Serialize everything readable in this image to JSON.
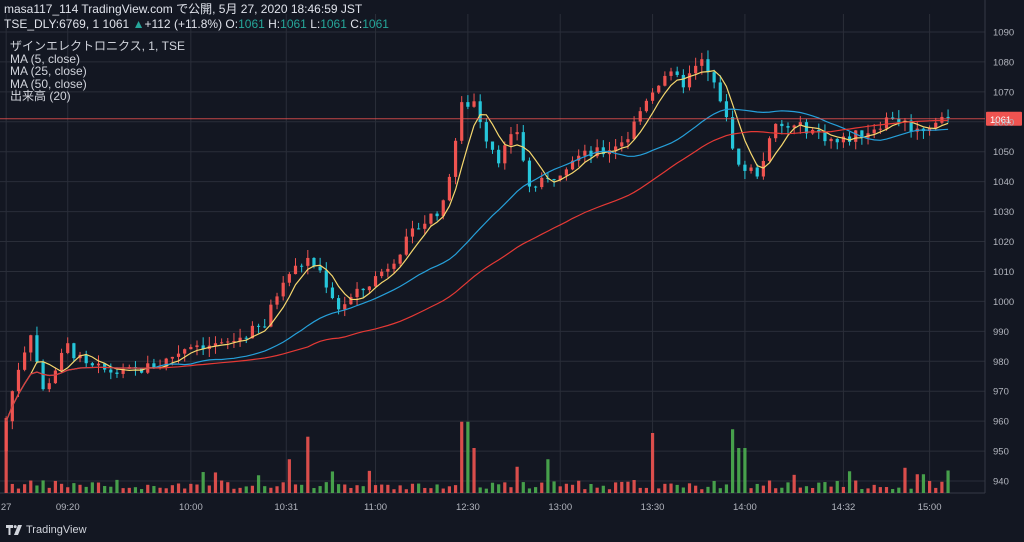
{
  "header": {
    "line1": "masa117_114 TradingView.com で公開, 5月 27, 2020 18:46:59 JST",
    "symbol": "TSE_DLY:6769, 1",
    "last": "1061",
    "change_arrow": "▲",
    "change": "+112 (+11.8%)",
    "o_label": "O:",
    "o_val": "1061",
    "h_label": "H:",
    "h_val": "1061",
    "l_label": "L:",
    "l_val": "1061",
    "c_label": "C:",
    "c_val": "1061"
  },
  "legend": {
    "title": "ザインエレクトロニクス, 1, TSE",
    "ma5": "MA (5, close)",
    "ma25": "MA (25, close)",
    "ma50": "MA (50, close)",
    "volume": "出来高 (20)"
  },
  "price_tag": "1061",
  "footer": {
    "brand": "TradingView"
  },
  "colors": {
    "background": "#131722",
    "up": "#ef5350",
    "down": "#26c6da",
    "vol_up": "#ef5350",
    "vol_down": "#4caf50",
    "ma5": "#f5d76e",
    "ma25": "#26a0da",
    "ma50": "#e53935",
    "price_line": "#ef5350",
    "grid": "#2a2e39"
  },
  "chart_data": {
    "type": "candlestick",
    "ylim": [
      936,
      1096
    ],
    "y_ticks": [
      940,
      950,
      960,
      970,
      980,
      990,
      1000,
      1010,
      1020,
      1030,
      1040,
      1050,
      1060,
      1070,
      1080,
      1090
    ],
    "x_ticks": [
      {
        "label": "27",
        "t": 0
      },
      {
        "label": "09:20",
        "t": 20
      },
      {
        "label": "10:00",
        "t": 60
      },
      {
        "label": "10:31",
        "t": 91
      },
      {
        "label": "11:00",
        "t": 120
      },
      {
        "label": "12:30",
        "t": 150
      },
      {
        "label": "13:00",
        "t": 180
      },
      {
        "label": "13:30",
        "t": 210
      },
      {
        "label": "14:00",
        "t": 240
      },
      {
        "label": "14:32",
        "t": 272
      },
      {
        "label": "15:00",
        "t": 300
      }
    ],
    "last_price": 1061,
    "key_points": [
      {
        "t": 0,
        "p": 950
      },
      {
        "t": 5,
        "p": 975
      },
      {
        "t": 10,
        "p": 990
      },
      {
        "t": 14,
        "p": 970
      },
      {
        "t": 22,
        "p": 985
      },
      {
        "t": 28,
        "p": 978
      },
      {
        "t": 40,
        "p": 976
      },
      {
        "t": 52,
        "p": 979
      },
      {
        "t": 62,
        "p": 986
      },
      {
        "t": 72,
        "p": 985
      },
      {
        "t": 80,
        "p": 989
      },
      {
        "t": 86,
        "p": 992
      },
      {
        "t": 92,
        "p": 1008
      },
      {
        "t": 100,
        "p": 1014
      },
      {
        "t": 104,
        "p": 1010
      },
      {
        "t": 110,
        "p": 998
      },
      {
        "t": 118,
        "p": 1004
      },
      {
        "t": 126,
        "p": 1012
      },
      {
        "t": 136,
        "p": 1025
      },
      {
        "t": 144,
        "p": 1032
      },
      {
        "t": 150,
        "p": 1065
      },
      {
        "t": 154,
        "p": 1067
      },
      {
        "t": 158,
        "p": 1055
      },
      {
        "t": 162,
        "p": 1048
      },
      {
        "t": 168,
        "p": 1057
      },
      {
        "t": 172,
        "p": 1038
      },
      {
        "t": 178,
        "p": 1040
      },
      {
        "t": 186,
        "p": 1048
      },
      {
        "t": 196,
        "p": 1050
      },
      {
        "t": 204,
        "p": 1055
      },
      {
        "t": 210,
        "p": 1068
      },
      {
        "t": 216,
        "p": 1076
      },
      {
        "t": 222,
        "p": 1073
      },
      {
        "t": 228,
        "p": 1080
      },
      {
        "t": 234,
        "p": 1068
      },
      {
        "t": 240,
        "p": 1045
      },
      {
        "t": 246,
        "p": 1043
      },
      {
        "t": 252,
        "p": 1058
      },
      {
        "t": 262,
        "p": 1058
      },
      {
        "t": 272,
        "p": 1053
      },
      {
        "t": 282,
        "p": 1057
      },
      {
        "t": 290,
        "p": 1062
      },
      {
        "t": 298,
        "p": 1057
      },
      {
        "t": 306,
        "p": 1061
      }
    ],
    "volume_spikes": [
      {
        "t": 0,
        "v": 1.0
      },
      {
        "t": 92,
        "v": 0.45
      },
      {
        "t": 98,
        "v": 0.55
      },
      {
        "t": 149,
        "v": 0.95
      },
      {
        "t": 152,
        "v": 0.6
      },
      {
        "t": 166,
        "v": 0.35
      },
      {
        "t": 176,
        "v": 0.45
      },
      {
        "t": 210,
        "v": 0.8
      },
      {
        "t": 236,
        "v": 0.85
      },
      {
        "t": 239,
        "v": 0.6
      },
      {
        "t": 297,
        "v": 0.25
      },
      {
        "t": 306,
        "v": 0.3
      }
    ]
  }
}
